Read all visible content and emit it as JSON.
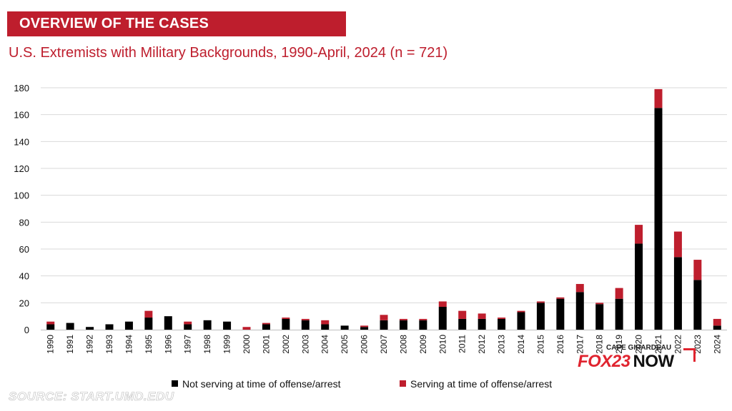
{
  "header": {
    "banner": "OVERVIEW OF THE CASES",
    "title": "U.S. Extremists with Military Backgrounds, 1990-April, 2024 (n = 721)"
  },
  "watermark": {
    "top": "CAPE GIRARDEAU",
    "brand": "FOX23",
    "suffix": "NOW"
  },
  "source": "SOURCE: START.UMD.EDU",
  "colors": {
    "not_serving": "#000000",
    "serving": "#be1e2d",
    "grid": "#d9d9d9",
    "banner": "#be1e2d",
    "title": "#be1e2d"
  },
  "chart_data": {
    "type": "bar",
    "stacked": true,
    "title": "U.S. Extremists with Military Backgrounds, 1990-April, 2024 (n = 721)",
    "xlabel": "",
    "ylabel": "",
    "ylim": [
      0,
      180
    ],
    "yticks": [
      0,
      20,
      40,
      60,
      80,
      100,
      120,
      140,
      160,
      180
    ],
    "grid": "horizontal",
    "legend_position": "bottom",
    "categories": [
      "1990",
      "1991",
      "1992",
      "1993",
      "1994",
      "1995",
      "1996",
      "1997",
      "1998",
      "1999",
      "2000",
      "2001",
      "2002",
      "2003",
      "2004",
      "2005",
      "2006",
      "2007",
      "2008",
      "2009",
      "2010",
      "2011",
      "2012",
      "2013",
      "2014",
      "2015",
      "2016",
      "2017",
      "2018",
      "2019",
      "2020",
      "2021",
      "2022",
      "2023",
      "2024"
    ],
    "series": [
      {
        "name": "Not serving at time of offense/arrest",
        "values": [
          4,
          5,
          2,
          4,
          6,
          9,
          10,
          4,
          7,
          6,
          0,
          4,
          8,
          7,
          4,
          3,
          2,
          7,
          7,
          7,
          17,
          8,
          8,
          8,
          13,
          20,
          23,
          28,
          19,
          23,
          64,
          165,
          54,
          37,
          3
        ]
      },
      {
        "name": "Serving at time of offense/arrest",
        "values": [
          2,
          0,
          0,
          0,
          0,
          5,
          0,
          2,
          0,
          0,
          2,
          1,
          1,
          1,
          3,
          0,
          1,
          4,
          1,
          1,
          4,
          6,
          4,
          1,
          1,
          1,
          1,
          6,
          1,
          8,
          14,
          14,
          19,
          15,
          5
        ]
      }
    ]
  }
}
